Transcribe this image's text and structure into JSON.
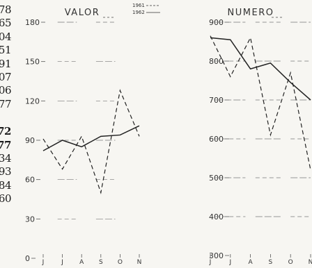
{
  "left_margin_numbers": [
    {
      "text": "78",
      "bold": false
    },
    {
      "text": "65",
      "bold": false
    },
    {
      "text": "04",
      "bold": false
    },
    {
      "text": "51",
      "bold": false
    },
    {
      "text": "91",
      "bold": false
    },
    {
      "text": "07",
      "bold": false
    },
    {
      "text": "06",
      "bold": false
    },
    {
      "text": "77",
      "bold": false
    },
    {
      "text": "72",
      "bold": true
    },
    {
      "text": "77",
      "bold": true
    },
    {
      "text": "34",
      "bold": false
    },
    {
      "text": "93",
      "bold": false
    },
    {
      "text": "84",
      "bold": false
    },
    {
      "text": "60",
      "bold": false
    }
  ],
  "chart_data": [
    {
      "type": "line",
      "title": "VALOR",
      "categories": [
        "J",
        "J",
        "A",
        "S",
        "O",
        "N"
      ],
      "ylim": [
        0,
        180
      ],
      "yticks": [
        "0",
        "30",
        "60",
        "90",
        "120",
        "150",
        "180"
      ],
      "grid": "dashed horizontal fragments",
      "legend": {
        "placement": "top-right",
        "entries": [
          "1961",
          "1962"
        ]
      },
      "series": [
        {
          "name": "1961",
          "style": "dashed",
          "color": "#222222",
          "values": [
            91,
            68,
            93,
            50,
            128,
            93
          ]
        },
        {
          "name": "1962",
          "style": "solid",
          "color": "#222222",
          "values": [
            82,
            90,
            85,
            93,
            94,
            101
          ]
        }
      ]
    },
    {
      "type": "line",
      "title": "NUMERO",
      "categories": [
        "J",
        "J",
        "A",
        "S",
        "O",
        "N"
      ],
      "ylim": [
        300,
        900
      ],
      "yticks": [
        "300",
        "400",
        "500",
        "600",
        "700",
        "800",
        "900"
      ],
      "grid": "dashed horizontal fragments",
      "series": [
        {
          "name": "1961",
          "style": "dashed",
          "color": "#222222",
          "values": [
            865,
            760,
            860,
            610,
            770,
            520
          ]
        },
        {
          "name": "1962",
          "style": "solid",
          "color": "#222222",
          "values": [
            860,
            855,
            780,
            795,
            745,
            700
          ]
        }
      ]
    }
  ]
}
